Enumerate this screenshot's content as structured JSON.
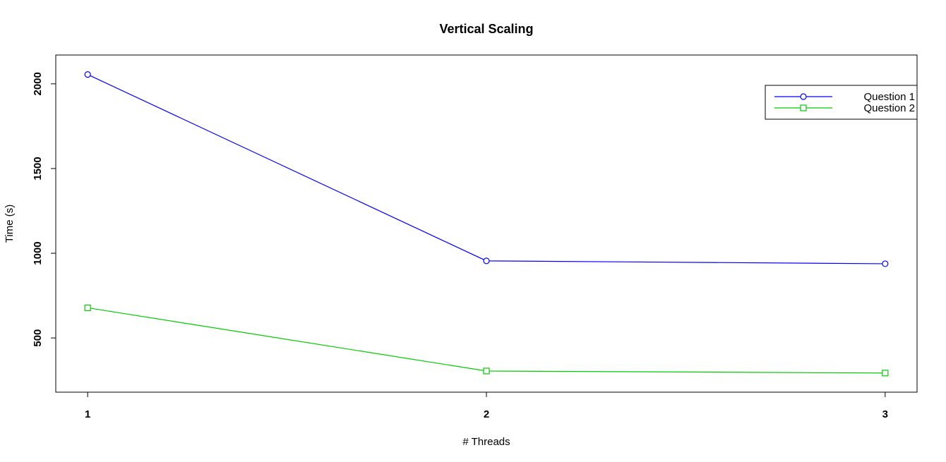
{
  "chart_data": {
    "type": "line",
    "title": "Vertical Scaling",
    "xlabel": "# Threads",
    "ylabel": "Time (s)",
    "x": [
      1,
      2,
      3
    ],
    "x_ticks": [
      "1",
      "2",
      "3"
    ],
    "y_ticks": [
      500,
      1000,
      1500,
      2000
    ],
    "ylim": [
      180,
      2170
    ],
    "xlim": [
      0.92,
      3.08
    ],
    "grid": false,
    "legend_position": "top-right",
    "series": [
      {
        "name": "Question 1",
        "values": [
          2055,
          955,
          938
        ],
        "color": "#0000ff",
        "marker": "circle"
      },
      {
        "name": "Question 2",
        "values": [
          678,
          305,
          293
        ],
        "color": "#00cc00",
        "marker": "square"
      }
    ]
  }
}
